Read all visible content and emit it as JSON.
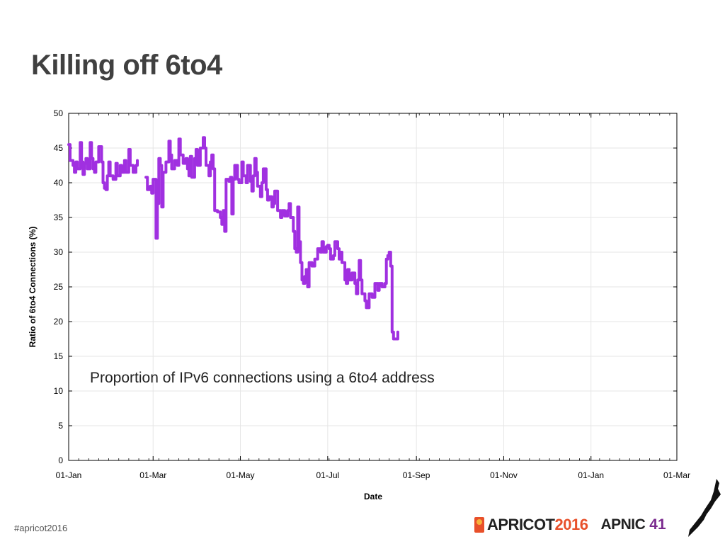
{
  "slide": {
    "title": "Killing off 6to4",
    "annotation": "Proportion of IPv6 connections using a 6to4 address",
    "hashtag": "#apricot2016",
    "logos": {
      "apricot": "APRICOT",
      "apricot_year": "2016",
      "apnic": "APNIC",
      "apnic_number": "41"
    }
  },
  "colors": {
    "line": "#a030e0",
    "grid": "#e6e6e6",
    "title": "#404040",
    "apricot": "#e8502a",
    "apnic": "#7a2a8e"
  },
  "chart_data": {
    "type": "line",
    "title": "",
    "xlabel": "Date",
    "ylabel": "Ratio of 6to4 Connections (%)",
    "xlim": [
      "2015-01-01",
      "2016-03-01"
    ],
    "ylim": [
      0,
      50
    ],
    "yticks": [
      0,
      5,
      10,
      15,
      20,
      25,
      30,
      35,
      40,
      45,
      50
    ],
    "xticks": [
      {
        "date": "2015-01-01",
        "label": "01-Jan"
      },
      {
        "date": "2015-03-01",
        "label": "01-Mar"
      },
      {
        "date": "2015-05-01",
        "label": "01-May"
      },
      {
        "date": "2015-07-01",
        "label": "01-Jul"
      },
      {
        "date": "2015-09-01",
        "label": "01-Sep"
      },
      {
        "date": "2015-11-01",
        "label": "01-Nov"
      },
      {
        "date": "2016-01-01",
        "label": "01-Jan"
      },
      {
        "date": "2016-03-01",
        "label": "01-Mar"
      }
    ],
    "grid": true,
    "series": [
      {
        "name": "",
        "segments": [
          [
            [
              "2015-01-01",
              45.5
            ],
            [
              "2015-01-02",
              43.2
            ],
            [
              "2015-01-04",
              42.5
            ],
            [
              "2015-01-05",
              41.5
            ],
            [
              "2015-01-06",
              43.0
            ],
            [
              "2015-01-07",
              42.0
            ],
            [
              "2015-01-09",
              45.8
            ],
            [
              "2015-01-10",
              43.0
            ],
            [
              "2015-01-11",
              41.2
            ],
            [
              "2015-01-12",
              42.8
            ],
            [
              "2015-01-13",
              43.5
            ],
            [
              "2015-01-14",
              42.0
            ],
            [
              "2015-01-16",
              45.8
            ],
            [
              "2015-01-17",
              43.5
            ],
            [
              "2015-01-18",
              42.0
            ],
            [
              "2015-01-19",
              41.5
            ],
            [
              "2015-01-20",
              43.0
            ],
            [
              "2015-01-22",
              45.2
            ],
            [
              "2015-01-24",
              43.0
            ],
            [
              "2015-01-25",
              40.0
            ],
            [
              "2015-01-26",
              39.2
            ],
            [
              "2015-01-27",
              39.0
            ],
            [
              "2015-01-28",
              41.0
            ],
            [
              "2015-01-29",
              43.0
            ],
            [
              "2015-01-30",
              41.0
            ],
            [
              "2015-02-01",
              40.5
            ],
            [
              "2015-02-03",
              42.8
            ],
            [
              "2015-02-04",
              41.0
            ],
            [
              "2015-02-06",
              42.5
            ],
            [
              "2015-02-07",
              41.5
            ],
            [
              "2015-02-09",
              43.2
            ],
            [
              "2015-02-10",
              41.5
            ],
            [
              "2015-02-12",
              44.8
            ],
            [
              "2015-02-13",
              42.5
            ],
            [
              "2015-02-15",
              41.5
            ],
            [
              "2015-02-17",
              42.5
            ],
            [
              "2015-02-18",
              43.2
            ]
          ],
          [
            [
              "2015-02-24",
              40.8
            ],
            [
              "2015-02-25",
              39.0
            ],
            [
              "2015-02-27",
              39.5
            ],
            [
              "2015-02-28",
              38.5
            ],
            [
              "2015-03-01",
              40.5
            ],
            [
              "2015-03-03",
              32.0
            ],
            [
              "2015-03-04",
              37.0
            ],
            [
              "2015-03-05",
              43.5
            ],
            [
              "2015-03-06",
              42.5
            ],
            [
              "2015-03-07",
              36.5
            ],
            [
              "2015-03-08",
              41.5
            ],
            [
              "2015-03-10",
              43.0
            ],
            [
              "2015-03-12",
              46.0
            ],
            [
              "2015-03-13",
              44.0
            ],
            [
              "2015-03-14",
              42.0
            ],
            [
              "2015-03-16",
              43.2
            ],
            [
              "2015-03-18",
              42.5
            ],
            [
              "2015-03-19",
              46.3
            ],
            [
              "2015-03-20",
              44.0
            ],
            [
              "2015-03-22",
              42.8
            ],
            [
              "2015-03-24",
              43.5
            ],
            [
              "2015-03-25",
              42.0
            ],
            [
              "2015-03-26",
              41.0
            ],
            [
              "2015-03-27",
              43.8
            ],
            [
              "2015-03-28",
              40.8
            ],
            [
              "2015-03-30",
              43.5
            ],
            [
              "2015-03-31",
              44.8
            ],
            [
              "2015-04-01",
              42.5
            ],
            [
              "2015-04-03",
              45.0
            ],
            [
              "2015-04-05",
              46.5
            ],
            [
              "2015-04-06",
              45.0
            ],
            [
              "2015-04-07",
              42.5
            ],
            [
              "2015-04-09",
              41.0
            ],
            [
              "2015-04-10",
              43.0
            ],
            [
              "2015-04-11",
              44.0
            ],
            [
              "2015-04-12",
              42.0
            ],
            [
              "2015-04-13",
              36.0
            ],
            [
              "2015-04-15",
              35.8
            ],
            [
              "2015-04-17",
              35.0
            ],
            [
              "2015-04-18",
              34.0
            ],
            [
              "2015-04-19",
              36.0
            ],
            [
              "2015-04-20",
              33.0
            ],
            [
              "2015-04-21",
              40.5
            ],
            [
              "2015-04-23",
              40.2
            ],
            [
              "2015-04-24",
              40.8
            ],
            [
              "2015-04-25",
              35.5
            ],
            [
              "2015-04-26",
              40.5
            ],
            [
              "2015-04-27",
              42.5
            ],
            [
              "2015-04-29",
              40.5
            ],
            [
              "2015-04-30",
              40.0
            ],
            [
              "2015-05-02",
              43.0
            ],
            [
              "2015-05-03",
              41.0
            ],
            [
              "2015-05-05",
              40.0
            ],
            [
              "2015-05-06",
              42.5
            ],
            [
              "2015-05-08",
              40.2
            ],
            [
              "2015-05-09",
              38.8
            ],
            [
              "2015-05-10",
              41.0
            ],
            [
              "2015-05-11",
              43.5
            ],
            [
              "2015-05-12",
              41.5
            ],
            [
              "2015-05-13",
              39.5
            ],
            [
              "2015-05-15",
              38.0
            ],
            [
              "2015-05-16",
              40.0
            ],
            [
              "2015-05-17",
              42.0
            ],
            [
              "2015-05-19",
              39.0
            ],
            [
              "2015-05-20",
              37.5
            ],
            [
              "2015-05-21",
              38.0
            ],
            [
              "2015-05-23",
              36.5
            ],
            [
              "2015-05-24",
              37.0
            ],
            [
              "2015-05-25",
              38.8
            ],
            [
              "2015-05-27",
              36.0
            ],
            [
              "2015-05-29",
              35.0
            ],
            [
              "2015-05-30",
              36.0
            ],
            [
              "2015-06-01",
              35.2
            ],
            [
              "2015-06-03",
              36.0
            ],
            [
              "2015-06-04",
              37.0
            ],
            [
              "2015-06-05",
              35.0
            ],
            [
              "2015-06-07",
              33.0
            ],
            [
              "2015-06-08",
              30.5
            ],
            [
              "2015-06-09",
              30.0
            ],
            [
              "2015-06-10",
              36.5
            ],
            [
              "2015-06-11",
              31.5
            ],
            [
              "2015-06-12",
              28.5
            ],
            [
              "2015-06-13",
              26.0
            ],
            [
              "2015-06-14",
              25.5
            ],
            [
              "2015-06-15",
              26.5
            ],
            [
              "2015-06-16",
              27.5
            ],
            [
              "2015-06-17",
              25.0
            ],
            [
              "2015-06-18",
              28.5
            ],
            [
              "2015-06-20",
              28.0
            ],
            [
              "2015-06-22",
              29.0
            ],
            [
              "2015-06-24",
              30.5
            ],
            [
              "2015-06-26",
              30.0
            ],
            [
              "2015-06-27",
              31.5
            ],
            [
              "2015-06-28",
              30.0
            ],
            [
              "2015-06-30",
              30.8
            ],
            [
              "2015-07-01",
              31.0
            ],
            [
              "2015-07-02",
              30.5
            ],
            [
              "2015-07-03",
              29.0
            ],
            [
              "2015-07-05",
              29.5
            ],
            [
              "2015-07-06",
              31.5
            ],
            [
              "2015-07-08",
              30.5
            ],
            [
              "2015-07-09",
              29.0
            ],
            [
              "2015-07-10",
              30.0
            ],
            [
              "2015-07-11",
              28.5
            ],
            [
              "2015-07-13",
              26.0
            ],
            [
              "2015-07-14",
              25.5
            ],
            [
              "2015-07-15",
              27.5
            ],
            [
              "2015-07-16",
              26.0
            ],
            [
              "2015-07-18",
              27.0
            ],
            [
              "2015-07-20",
              25.5
            ],
            [
              "2015-07-21",
              24.0
            ],
            [
              "2015-07-22",
              26.0
            ],
            [
              "2015-07-23",
              28.8
            ],
            [
              "2015-07-24",
              26.0
            ],
            [
              "2015-07-25",
              24.0
            ],
            [
              "2015-07-27",
              23.0
            ],
            [
              "2015-07-28",
              22.0
            ],
            [
              "2015-07-30",
              24.0
            ],
            [
              "2015-08-01",
              23.5
            ],
            [
              "2015-08-03",
              25.5
            ],
            [
              "2015-08-05",
              24.5
            ],
            [
              "2015-08-06",
              25.5
            ],
            [
              "2015-08-08",
              25.0
            ],
            [
              "2015-08-10",
              25.5
            ],
            [
              "2015-08-11",
              29.0
            ],
            [
              "2015-08-12",
              29.5
            ],
            [
              "2015-08-13",
              30.0
            ],
            [
              "2015-08-14",
              28.0
            ],
            [
              "2015-08-15",
              18.5
            ],
            [
              "2015-08-16",
              17.5
            ],
            [
              "2015-08-18",
              17.5
            ],
            [
              "2015-08-19",
              18.5
            ]
          ]
        ]
      }
    ]
  }
}
